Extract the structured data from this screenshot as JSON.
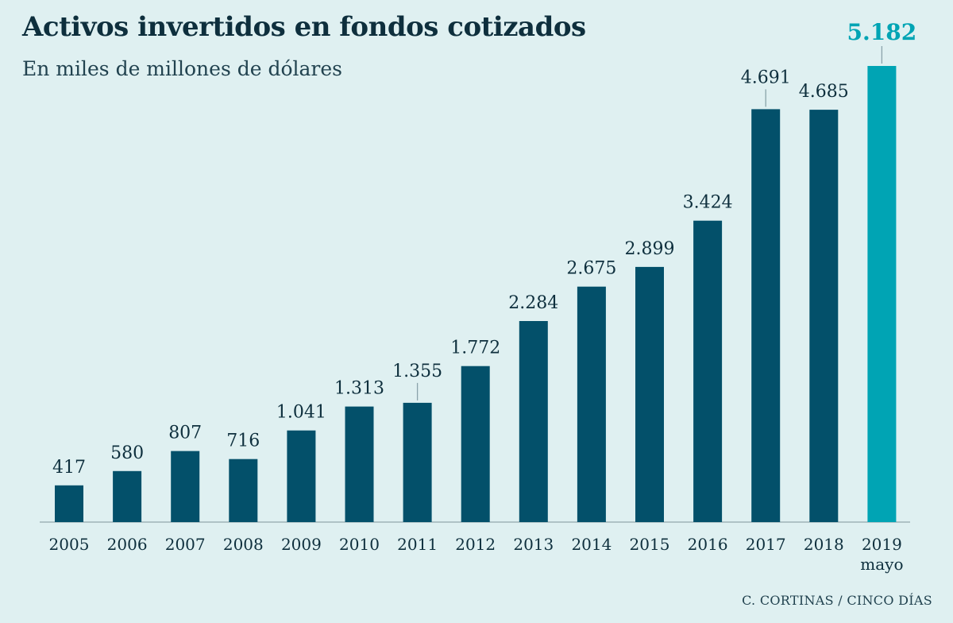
{
  "chart_data": {
    "type": "bar",
    "title": "Activos invertidos en fondos cotizados",
    "subtitle": "En miles de millones de dólares",
    "categories": [
      "2005",
      "2006",
      "2007",
      "2008",
      "2009",
      "2010",
      "2011",
      "2012",
      "2013",
      "2014",
      "2015",
      "2016",
      "2017",
      "2018",
      "2019"
    ],
    "category_sublabels": [
      "",
      "",
      "",
      "",
      "",
      "",
      "",
      "",
      "",
      "",
      "",
      "",
      "",
      "",
      "mayo"
    ],
    "values": [
      417,
      580,
      807,
      716,
      1041,
      1313,
      1355,
      1772,
      2284,
      2675,
      2899,
      3424,
      4691,
      4685,
      5182
    ],
    "data_labels": [
      "417",
      "580",
      "807",
      "716",
      "1.041",
      "1.313",
      "1.355",
      "1.772",
      "2.284",
      "2.675",
      "2.899",
      "3.424",
      "4.691",
      "4.685",
      "5.182"
    ],
    "highlight_index": 14,
    "ylim": [
      0,
      5182
    ],
    "grid": false,
    "colors": {
      "bar": "#03506a",
      "highlight": "#00a4b4",
      "label": "#0e2f3d",
      "highlight_label": "#00a4b4",
      "background": "#dff0f1"
    }
  },
  "credit": "C. CORTINAS / CINCO DÍAS"
}
